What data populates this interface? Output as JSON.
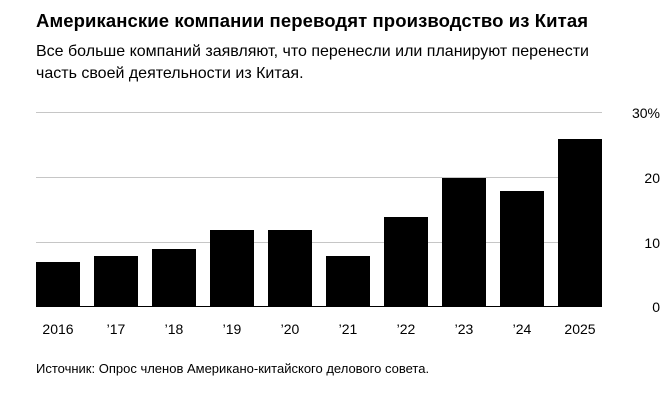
{
  "header": {
    "title": "Американские компании переводят производство из Китая",
    "subtitle": "Все больше компаний заявляют, что перенесли или планируют перенести часть своей деятельности из Китая."
  },
  "chart_data": {
    "type": "bar",
    "categories": [
      "2016",
      "’17",
      "’18",
      "’19",
      "’20",
      "’21",
      "’22",
      "’23",
      "’24",
      "2025"
    ],
    "values": [
      7,
      8,
      9,
      12,
      12,
      8,
      14,
      20,
      18,
      26
    ],
    "title": "Американские компании переводят производство из Китая",
    "xlabel": "",
    "ylabel": "",
    "ylim": [
      0,
      30
    ],
    "yticks": [
      0,
      10,
      20,
      30
    ],
    "ytick_labels": [
      "0",
      "10",
      "20",
      "30%"
    ],
    "unit": "%",
    "bar_color": "#000000",
    "gridline_color": "#c6c6c6",
    "baseline_color": "#000000",
    "grid": true,
    "legend_position": "none",
    "yaxis_side": "right"
  },
  "footer": {
    "source": "Источник: Опрос членов Американо-китайского делового совета."
  }
}
